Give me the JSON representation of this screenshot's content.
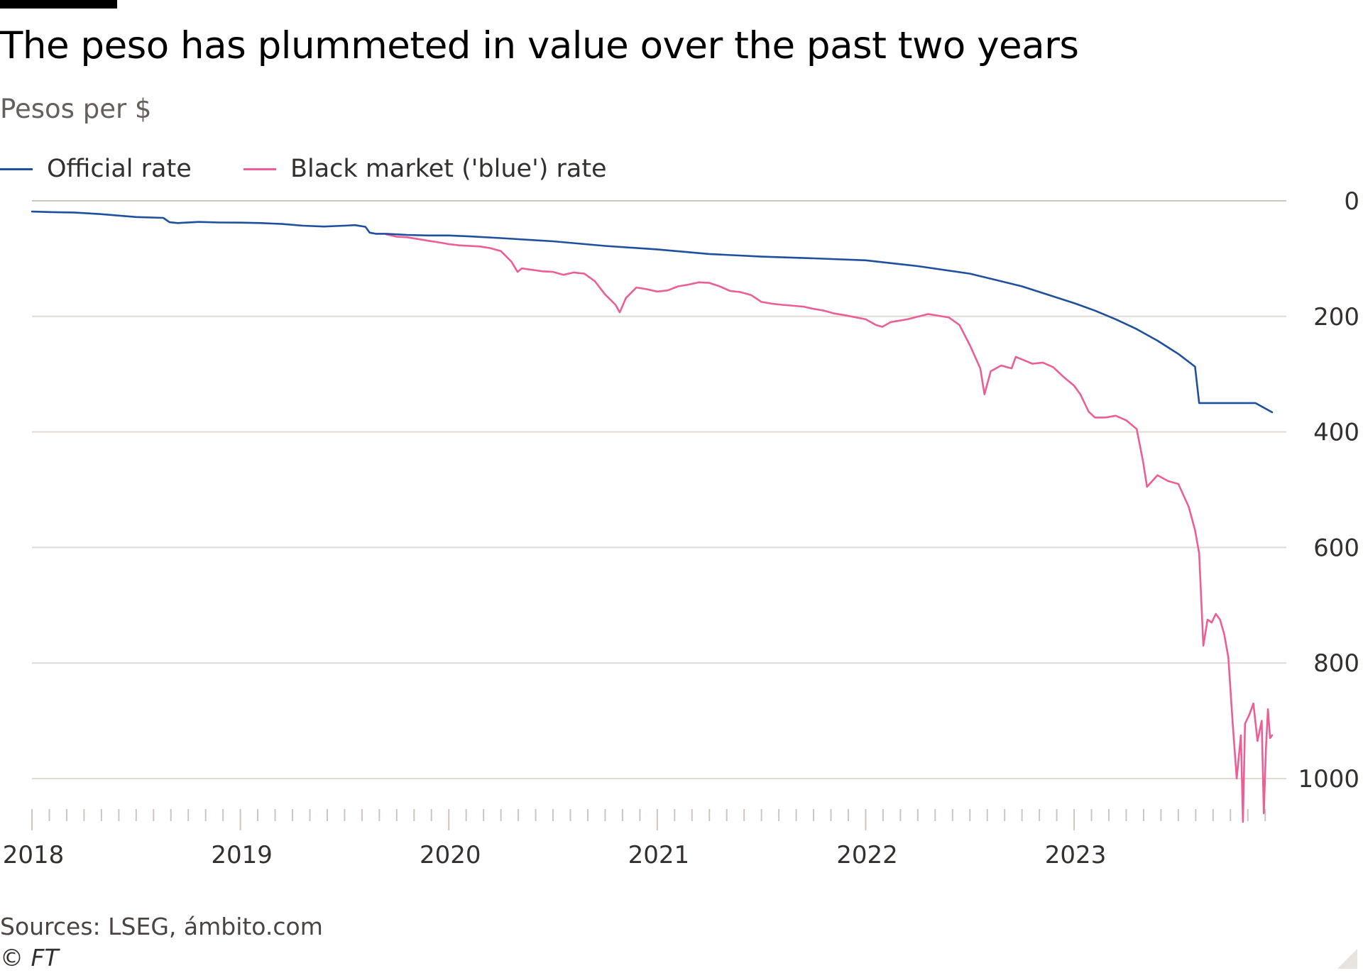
{
  "header": {
    "title": "The peso has plummeted in value over the past two years",
    "subtitle": "Pesos per $"
  },
  "legend": {
    "official": "Official rate",
    "blue": "Black market ('blue') rate"
  },
  "colors": {
    "official": "#1f4f9f",
    "blue": "#eb5e96",
    "grid": "#e2dbd3",
    "axis": "#cec6be",
    "tick_text": "#33302e"
  },
  "footer": {
    "source": "Sources: LSEG, ámbito.com",
    "copyright": "© FT"
  },
  "chart_data": {
    "type": "line",
    "y_axis": {
      "inverted": true,
      "position": "right",
      "range": [
        0,
        1080
      ],
      "ticks": [
        0,
        200,
        400,
        600,
        800,
        1000
      ],
      "grid": true
    },
    "x_axis": {
      "range": [
        2018.0,
        2023.95
      ],
      "ticks": [
        2018,
        2019,
        2020,
        2021,
        2022,
        2023
      ],
      "tick_labels": [
        "2018",
        "2019",
        "2020",
        "2021",
        "2022",
        "2023"
      ],
      "minor_ticks": "monthly"
    },
    "series": [
      {
        "name": "Official rate",
        "points": [
          [
            2018.0,
            18.6
          ],
          [
            2018.1,
            19.5
          ],
          [
            2018.2,
            20.2
          ],
          [
            2018.33,
            23
          ],
          [
            2018.5,
            28
          ],
          [
            2018.63,
            29.5
          ],
          [
            2018.66,
            37
          ],
          [
            2018.7,
            38.5
          ],
          [
            2018.8,
            36.5
          ],
          [
            2018.9,
            37.5
          ],
          [
            2019.0,
            37.7
          ],
          [
            2019.1,
            38.5
          ],
          [
            2019.2,
            40
          ],
          [
            2019.3,
            43
          ],
          [
            2019.4,
            44.5
          ],
          [
            2019.5,
            43
          ],
          [
            2019.55,
            42
          ],
          [
            2019.6,
            45
          ],
          [
            2019.62,
            55
          ],
          [
            2019.65,
            57
          ],
          [
            2019.7,
            57
          ],
          [
            2019.8,
            59
          ],
          [
            2019.9,
            60
          ],
          [
            2020.0,
            60
          ],
          [
            2020.1,
            61.5
          ],
          [
            2020.25,
            64.5
          ],
          [
            2020.5,
            70
          ],
          [
            2020.75,
            78
          ],
          [
            2021.0,
            84
          ],
          [
            2021.25,
            92
          ],
          [
            2021.5,
            96.5
          ],
          [
            2021.75,
            99.5
          ],
          [
            2022.0,
            103
          ],
          [
            2022.25,
            113
          ],
          [
            2022.5,
            126
          ],
          [
            2022.75,
            148
          ],
          [
            2023.0,
            177
          ],
          [
            2023.1,
            190
          ],
          [
            2023.2,
            205
          ],
          [
            2023.3,
            222
          ],
          [
            2023.4,
            242
          ],
          [
            2023.5,
            265
          ],
          [
            2023.58,
            287
          ],
          [
            2023.6,
            350
          ],
          [
            2023.7,
            350
          ],
          [
            2023.8,
            350
          ],
          [
            2023.87,
            350
          ],
          [
            2023.95,
            366
          ]
        ]
      },
      {
        "name": "Black market ('blue') rate",
        "points": [
          [
            2019.7,
            58
          ],
          [
            2019.75,
            62
          ],
          [
            2019.8,
            63
          ],
          [
            2019.85,
            66
          ],
          [
            2019.9,
            69
          ],
          [
            2019.97,
            73
          ],
          [
            2020.0,
            75
          ],
          [
            2020.05,
            77
          ],
          [
            2020.15,
            79
          ],
          [
            2020.2,
            82
          ],
          [
            2020.25,
            87
          ],
          [
            2020.3,
            105
          ],
          [
            2020.33,
            123
          ],
          [
            2020.35,
            117
          ],
          [
            2020.45,
            122
          ],
          [
            2020.5,
            123
          ],
          [
            2020.55,
            128
          ],
          [
            2020.6,
            124
          ],
          [
            2020.65,
            126
          ],
          [
            2020.7,
            139
          ],
          [
            2020.75,
            162
          ],
          [
            2020.8,
            180
          ],
          [
            2020.82,
            193
          ],
          [
            2020.85,
            168
          ],
          [
            2020.9,
            150
          ],
          [
            2020.95,
            153
          ],
          [
            2021.0,
            157
          ],
          [
            2021.05,
            155
          ],
          [
            2021.1,
            148
          ],
          [
            2021.15,
            145
          ],
          [
            2021.2,
            141
          ],
          [
            2021.25,
            142
          ],
          [
            2021.3,
            148
          ],
          [
            2021.35,
            156
          ],
          [
            2021.4,
            158
          ],
          [
            2021.45,
            163
          ],
          [
            2021.5,
            175
          ],
          [
            2021.55,
            178
          ],
          [
            2021.6,
            180
          ],
          [
            2021.7,
            183
          ],
          [
            2021.75,
            187
          ],
          [
            2021.8,
            190
          ],
          [
            2021.85,
            195
          ],
          [
            2021.9,
            198
          ],
          [
            2022.0,
            205
          ],
          [
            2022.05,
            215
          ],
          [
            2022.08,
            218
          ],
          [
            2022.12,
            210
          ],
          [
            2022.2,
            205
          ],
          [
            2022.3,
            196
          ],
          [
            2022.4,
            202
          ],
          [
            2022.45,
            215
          ],
          [
            2022.5,
            250
          ],
          [
            2022.55,
            290
          ],
          [
            2022.57,
            335
          ],
          [
            2022.6,
            295
          ],
          [
            2022.65,
            285
          ],
          [
            2022.7,
            290
          ],
          [
            2022.72,
            270
          ],
          [
            2022.8,
            282
          ],
          [
            2022.85,
            280
          ],
          [
            2022.9,
            288
          ],
          [
            2022.95,
            305
          ],
          [
            2023.0,
            320
          ],
          [
            2023.03,
            335
          ],
          [
            2023.07,
            365
          ],
          [
            2023.1,
            375
          ],
          [
            2023.15,
            375
          ],
          [
            2023.2,
            372
          ],
          [
            2023.25,
            380
          ],
          [
            2023.3,
            395
          ],
          [
            2023.33,
            450
          ],
          [
            2023.35,
            495
          ],
          [
            2023.4,
            475
          ],
          [
            2023.45,
            485
          ],
          [
            2023.5,
            490
          ],
          [
            2023.55,
            530
          ],
          [
            2023.58,
            570
          ],
          [
            2023.6,
            610
          ],
          [
            2023.62,
            770
          ],
          [
            2023.64,
            725
          ],
          [
            2023.66,
            730
          ],
          [
            2023.68,
            715
          ],
          [
            2023.7,
            725
          ],
          [
            2023.72,
            750
          ],
          [
            2023.74,
            790
          ],
          [
            2023.76,
            900
          ],
          [
            2023.78,
            1000
          ],
          [
            2023.8,
            925
          ],
          [
            2023.81,
            1075
          ],
          [
            2023.82,
            905
          ],
          [
            2023.84,
            890
          ],
          [
            2023.86,
            870
          ],
          [
            2023.88,
            935
          ],
          [
            2023.9,
            900
          ],
          [
            2023.91,
            1060
          ],
          [
            2023.92,
            950
          ],
          [
            2023.93,
            880
          ],
          [
            2023.94,
            930
          ],
          [
            2023.95,
            925
          ]
        ]
      }
    ]
  }
}
